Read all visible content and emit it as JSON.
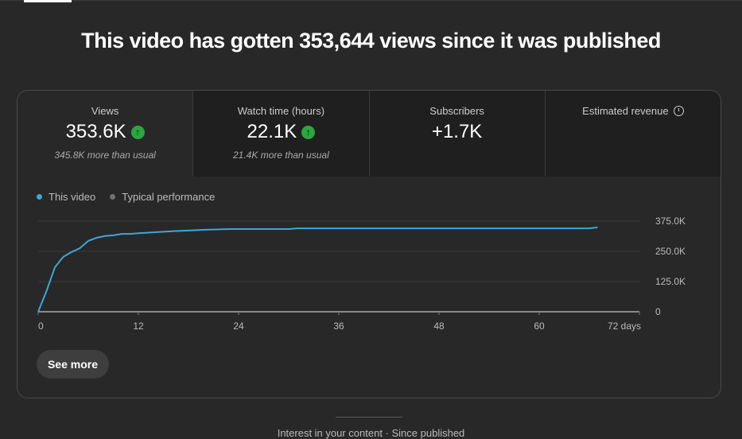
{
  "title": "This video has gotten 353,644 views since it was published",
  "metrics": [
    {
      "label": "Views",
      "value": "353.6K",
      "trend": "up",
      "sub": "345.8K more than usual"
    },
    {
      "label": "Watch time (hours)",
      "value": "22.1K",
      "trend": "up",
      "sub": "21.4K more than usual"
    },
    {
      "label": "Subscribers",
      "value": "+1.7K"
    },
    {
      "label": "Estimated revenue",
      "icon": "clock-icon"
    }
  ],
  "legend": {
    "this_video": "This video",
    "typical": "Typical performance"
  },
  "colors": {
    "this_video": "#3ea6d8",
    "typical": "#717171",
    "trend_up": "#2ba640"
  },
  "see_more": "See more",
  "footer": "Interest in your content · Since published",
  "chart_data": {
    "type": "line",
    "xlim": [
      0,
      72
    ],
    "ylim": [
      0,
      375000
    ],
    "x_ticks": [
      "0",
      "12",
      "24",
      "36",
      "48",
      "60",
      "72 days"
    ],
    "y_ticks": [
      "0",
      "125.0K",
      "250.0K",
      "375.0K"
    ],
    "grid": true,
    "series": [
      {
        "name": "This video",
        "x": [
          0,
          1,
          2,
          3,
          4,
          5,
          6,
          7,
          8,
          9,
          10,
          11,
          12,
          14,
          16,
          18,
          20,
          23,
          30,
          31,
          66,
          67
        ],
        "y": [
          0,
          86000,
          184000,
          227000,
          247000,
          263000,
          293000,
          306000,
          313000,
          316000,
          322000,
          322000,
          325000,
          329000,
          333000,
          336000,
          339000,
          342000,
          342000,
          345000,
          345000,
          349000
        ]
      }
    ]
  }
}
